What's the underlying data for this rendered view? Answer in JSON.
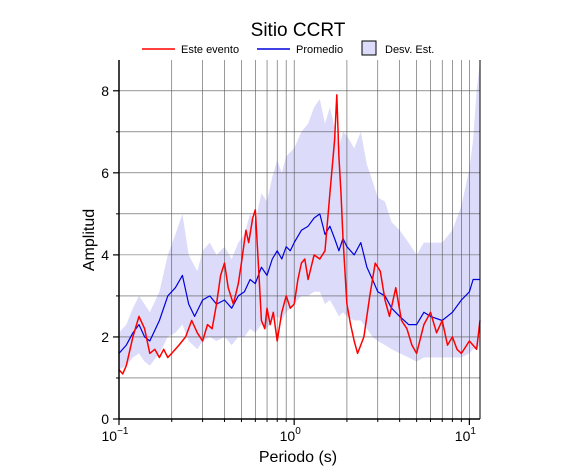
{
  "chart_data": {
    "type": "line",
    "title": "Sitio CCRT",
    "xlabel": "Periodo (s)",
    "ylabel": "Amplitud",
    "xscale": "log",
    "xlim": [
      0.1,
      11.5
    ],
    "ylim": [
      0,
      8.75
    ],
    "grid": true,
    "legend_position": "top",
    "y_ticks": [
      0,
      2,
      4,
      6,
      8
    ],
    "x_ticks": [
      {
        "value": 0.1,
        "base": "10",
        "exp": "−1"
      },
      {
        "value": 1,
        "base": "10",
        "exp": "0"
      },
      {
        "value": 10,
        "base": "10",
        "exp": "1"
      }
    ],
    "legend": {
      "event_label": "Este evento",
      "mean_label": "Promedio",
      "std_label": "Desv. Est."
    },
    "colors": {
      "event": "#ff0000",
      "mean": "#0000dd",
      "std_fill": "#dcdcfa",
      "std_edge": "#000000"
    },
    "series": [
      {
        "name": "Este evento",
        "x": [
          0.1,
          0.105,
          0.11,
          0.12,
          0.13,
          0.14,
          0.15,
          0.16,
          0.17,
          0.18,
          0.19,
          0.2,
          0.22,
          0.24,
          0.26,
          0.28,
          0.3,
          0.32,
          0.34,
          0.36,
          0.38,
          0.4,
          0.42,
          0.45,
          0.48,
          0.5,
          0.53,
          0.55,
          0.58,
          0.6,
          0.63,
          0.65,
          0.68,
          0.7,
          0.73,
          0.76,
          0.8,
          0.85,
          0.9,
          0.95,
          1.0,
          1.05,
          1.1,
          1.15,
          1.2,
          1.3,
          1.4,
          1.5,
          1.6,
          1.7,
          1.75,
          1.8,
          1.85,
          1.9,
          2.0,
          2.1,
          2.2,
          2.3,
          2.5,
          2.7,
          2.9,
          3.1,
          3.3,
          3.5,
          3.8,
          4.1,
          4.4,
          4.7,
          5.0,
          5.5,
          6.0,
          6.5,
          7.0,
          7.5,
          8.0,
          8.5,
          9.0,
          10.0,
          11.0,
          11.5
        ],
        "values": [
          1.2,
          1.1,
          1.3,
          2.0,
          2.5,
          2.2,
          1.6,
          1.7,
          1.5,
          1.7,
          1.5,
          1.6,
          1.8,
          2.0,
          2.4,
          2.1,
          1.9,
          2.3,
          2.2,
          2.8,
          3.5,
          3.8,
          3.2,
          2.8,
          3.3,
          3.8,
          4.6,
          4.3,
          4.9,
          5.1,
          3.5,
          2.4,
          2.2,
          2.7,
          2.3,
          2.6,
          1.9,
          2.6,
          3.0,
          2.7,
          2.8,
          3.4,
          3.8,
          3.9,
          3.4,
          4.0,
          3.9,
          4.1,
          5.5,
          6.8,
          7.9,
          6.4,
          5.5,
          4.4,
          2.8,
          2.3,
          1.9,
          1.6,
          2.0,
          3.0,
          3.8,
          3.6,
          2.9,
          2.5,
          3.2,
          2.4,
          2.2,
          1.8,
          1.6,
          2.3,
          2.6,
          2.1,
          2.4,
          1.8,
          2.0,
          1.7,
          1.6,
          1.9,
          1.7,
          2.4
        ]
      },
      {
        "name": "Promedio",
        "x": [
          0.1,
          0.11,
          0.12,
          0.13,
          0.14,
          0.15,
          0.17,
          0.19,
          0.21,
          0.23,
          0.25,
          0.27,
          0.3,
          0.33,
          0.36,
          0.4,
          0.44,
          0.48,
          0.52,
          0.56,
          0.6,
          0.65,
          0.7,
          0.75,
          0.8,
          0.85,
          0.9,
          0.95,
          1.0,
          1.1,
          1.2,
          1.3,
          1.4,
          1.5,
          1.6,
          1.7,
          1.8,
          1.9,
          2.0,
          2.2,
          2.4,
          2.6,
          2.8,
          3.0,
          3.3,
          3.6,
          4.0,
          4.5,
          5.0,
          5.5,
          6.0,
          7.0,
          8.0,
          9.0,
          10.0,
          10.5,
          11.0,
          11.5
        ],
        "values": [
          1.6,
          1.8,
          2.1,
          2.3,
          2.0,
          1.9,
          2.4,
          3.0,
          3.2,
          3.5,
          2.8,
          2.5,
          2.9,
          3.0,
          2.8,
          2.9,
          2.7,
          3.0,
          3.1,
          3.4,
          3.3,
          3.7,
          3.5,
          3.9,
          4.1,
          3.9,
          4.2,
          4.1,
          4.3,
          4.6,
          4.7,
          4.9,
          5.0,
          4.5,
          4.7,
          4.4,
          4.1,
          4.4,
          4.2,
          4.0,
          4.3,
          3.7,
          3.4,
          3.1,
          3.0,
          2.7,
          2.5,
          2.3,
          2.3,
          2.6,
          2.5,
          2.4,
          2.6,
          2.9,
          3.1,
          3.4,
          3.4,
          3.4
        ]
      },
      {
        "name": "Desv. Est.",
        "x": [
          0.1,
          0.11,
          0.12,
          0.13,
          0.14,
          0.15,
          0.17,
          0.19,
          0.21,
          0.23,
          0.25,
          0.28,
          0.3,
          0.33,
          0.36,
          0.4,
          0.44,
          0.48,
          0.52,
          0.56,
          0.6,
          0.65,
          0.7,
          0.75,
          0.8,
          0.85,
          0.9,
          1.0,
          1.1,
          1.2,
          1.3,
          1.4,
          1.5,
          1.6,
          1.7,
          1.8,
          1.9,
          2.0,
          2.2,
          2.4,
          2.6,
          2.8,
          3.0,
          3.3,
          3.6,
          4.0,
          4.5,
          5.0,
          5.5,
          6.0,
          7.0,
          8.0,
          9.0,
          10.0,
          10.5,
          11.0,
          11.5
        ],
        "lower": [
          1.2,
          1.3,
          1.5,
          1.6,
          1.4,
          1.3,
          1.6,
          2.0,
          2.1,
          2.3,
          1.9,
          1.7,
          1.9,
          2.0,
          1.9,
          2.0,
          1.8,
          2.0,
          2.0,
          2.2,
          2.1,
          2.3,
          2.2,
          2.4,
          2.5,
          2.4,
          2.6,
          2.8,
          3.0,
          3.0,
          3.1,
          3.1,
          2.8,
          2.9,
          2.7,
          2.5,
          2.6,
          2.5,
          2.4,
          2.4,
          2.2,
          2.0,
          1.9,
          1.8,
          1.7,
          1.6,
          1.5,
          1.4,
          1.5,
          1.5,
          1.5,
          1.5,
          1.5,
          1.6,
          1.7,
          1.7,
          1.8
        ],
        "upper": [
          2.1,
          2.3,
          2.7,
          3.0,
          2.8,
          2.6,
          3.1,
          4.0,
          4.5,
          5.0,
          4.0,
          3.6,
          4.1,
          4.3,
          4.0,
          4.2,
          3.9,
          4.3,
          4.5,
          5.0,
          4.8,
          5.5,
          5.3,
          5.9,
          6.3,
          6.0,
          6.4,
          6.6,
          7.0,
          7.2,
          7.6,
          7.8,
          7.2,
          7.6,
          7.1,
          6.6,
          7.0,
          6.9,
          6.6,
          7.0,
          6.2,
          5.8,
          5.4,
          5.3,
          4.8,
          4.6,
          4.3,
          4.0,
          4.3,
          4.3,
          4.3,
          4.6,
          5.2,
          6.1,
          6.8,
          8.0,
          8.7
        ]
      }
    ]
  }
}
